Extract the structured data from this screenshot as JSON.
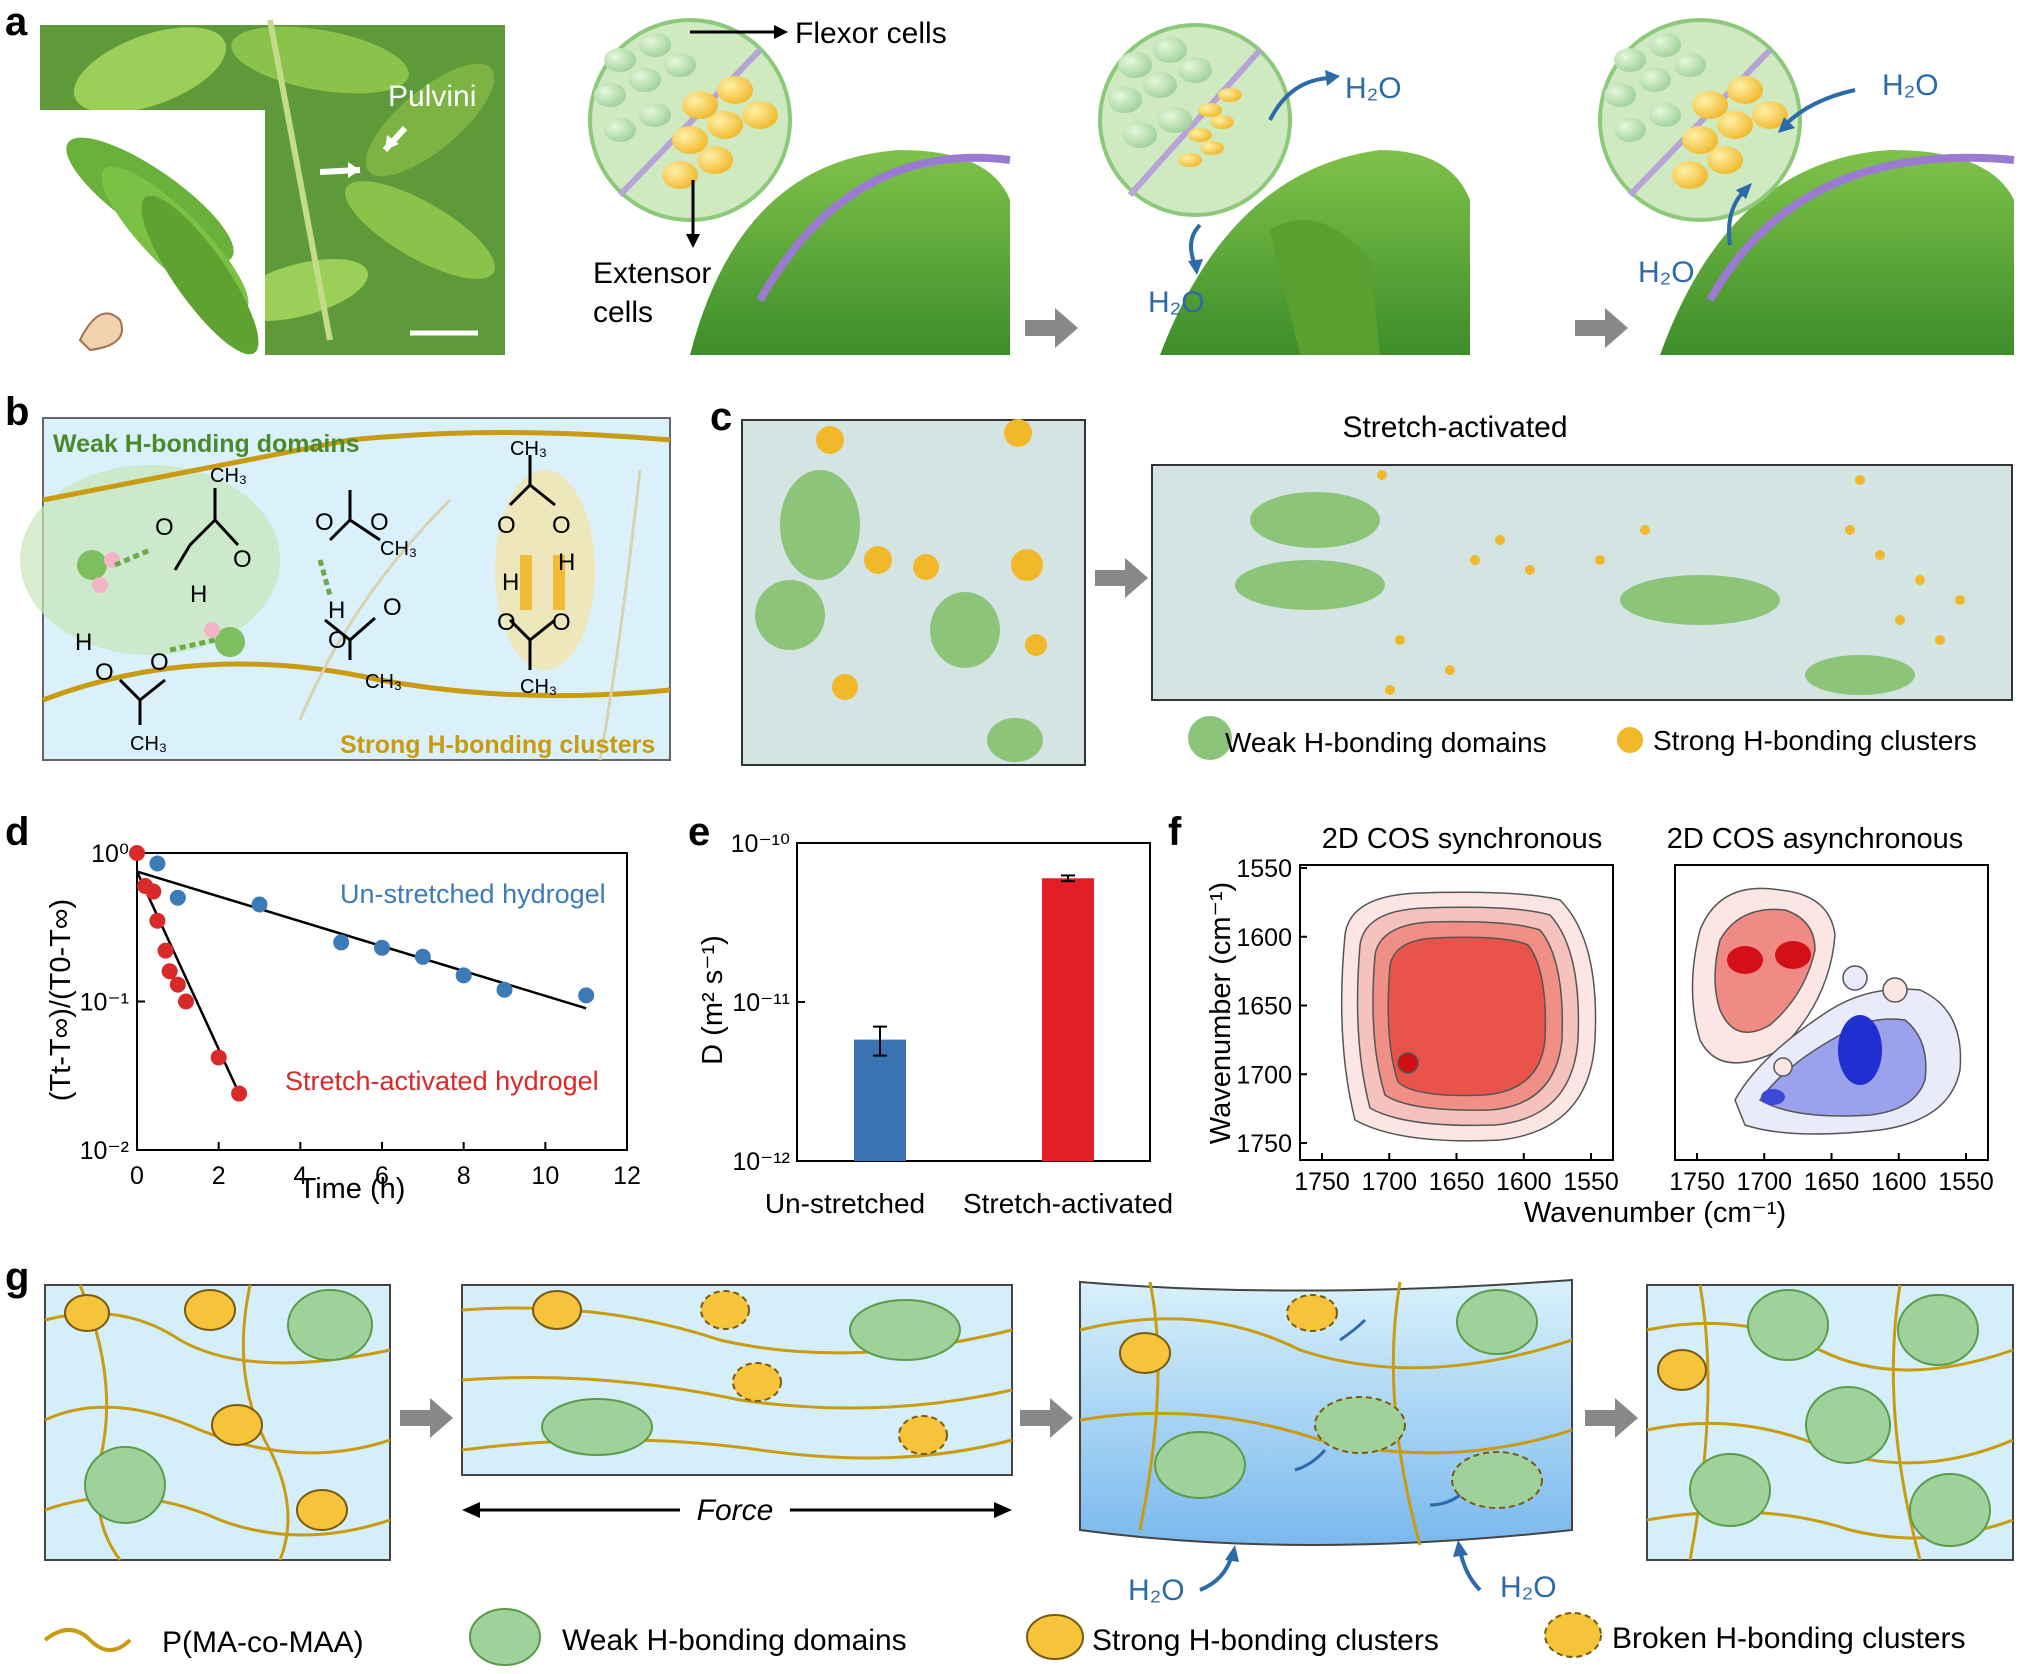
{
  "panels": {
    "a": "a",
    "b": "b",
    "c": "c",
    "d": "d",
    "e": "e",
    "f": "f",
    "g": "g"
  },
  "panel_a": {
    "pulvini": "Pulvini",
    "flexor": "Flexor cells",
    "extensor_1": "Extensor",
    "extensor_2": "cells",
    "water": "H₂O"
  },
  "panel_b": {
    "weak": "Weak H-bonding domains",
    "strong": "Strong H-bonding clusters",
    "ch3": "CH₃",
    "o": "O",
    "h": "H"
  },
  "panel_c": {
    "title": "Stretch-activated",
    "legend_weak": "Weak H-bonding domains",
    "legend_strong": "Strong H-bonding clusters"
  },
  "panel_g": {
    "force": "Force",
    "water": "H₂O",
    "legend_polymer": "P(MA-co-MAA)",
    "legend_weak": "Weak H-bonding domains",
    "legend_strong": "Strong H-bonding clusters",
    "legend_broken": "Broken H-bonding clusters"
  },
  "colors": {
    "weak_green": "#8fc97a",
    "strong_yellow": "#f5c43a",
    "water_blue": "#2c6aa8",
    "blue_series": "#3d7ab8",
    "red_series": "#d92a2a",
    "bg_blue": "#d4eefa"
  },
  "chart_data": [
    {
      "id": "d",
      "type": "scatter",
      "xlabel": "Time (h)",
      "ylabel": "(Tt-T∞)/(T0-T∞)",
      "xlim": [
        0,
        12
      ],
      "ylim": [
        0.01,
        1
      ],
      "yscale": "log",
      "xticks": [
        "0",
        "2",
        "4",
        "6",
        "8",
        "10",
        "12"
      ],
      "yticks": [
        "10⁻²",
        "10⁻¹",
        "10⁰"
      ],
      "series": [
        {
          "name": "Un-stretched hydrogel",
          "color": "#3d7ab8",
          "x": [
            0.5,
            1,
            3,
            5,
            6,
            7,
            8,
            9,
            11
          ],
          "y": [
            0.85,
            0.5,
            0.45,
            0.25,
            0.23,
            0.2,
            0.15,
            0.12,
            0.11
          ],
          "fit": [
            [
              0,
              0.75
            ],
            [
              11,
              0.09
            ]
          ]
        },
        {
          "name": "Stretch-activated hydrogel",
          "color": "#d92a2a",
          "x": [
            0,
            0.2,
            0.4,
            0.5,
            0.7,
            0.8,
            1.0,
            1.2,
            2.0,
            2.5
          ],
          "y": [
            1.0,
            0.6,
            0.55,
            0.35,
            0.22,
            0.16,
            0.13,
            0.1,
            0.042,
            0.024
          ],
          "fit": [
            [
              0,
              0.75
            ],
            [
              2.5,
              0.024
            ]
          ]
        }
      ]
    },
    {
      "id": "e",
      "type": "bar",
      "ylabel": "D (m² s⁻¹)",
      "yscale": "log",
      "ylim": [
        1e-12,
        1e-10
      ],
      "yticks": [
        "10⁻¹²",
        "10⁻¹¹",
        "10⁻¹⁰"
      ],
      "categories": [
        "Un-stretched",
        "Stretch-activated"
      ],
      "values": [
        5.8e-12,
        6e-11
      ],
      "errors": [
        1.2e-12,
        2.5e-12
      ],
      "colors": [
        "#3973b4",
        "#e31e24"
      ]
    },
    {
      "id": "f",
      "type": "heatmap",
      "titles": [
        "2D COS synchronous",
        "2D COS asynchronous"
      ],
      "xlabel": "Wavenumber (cm⁻¹)",
      "ylabel": "Wavenumber (cm⁻¹)",
      "xlim": [
        1750,
        1550
      ],
      "ylim": [
        1550,
        1750
      ],
      "xticks": [
        "1750",
        "1700",
        "1650",
        "1600",
        "1550"
      ],
      "yticks": [
        "1550",
        "1600",
        "1650",
        "1700",
        "1750"
      ]
    }
  ]
}
